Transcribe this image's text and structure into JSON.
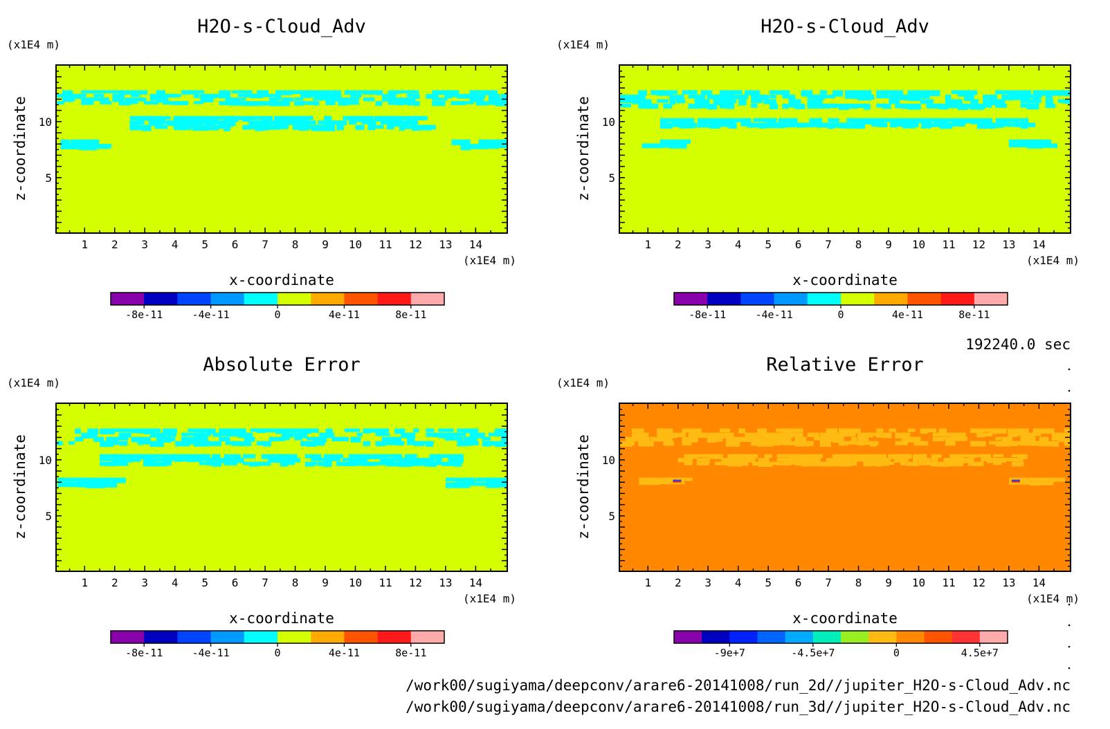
{
  "figure": {
    "time_label": "192240.0 sec",
    "files": [
      "/work00/sugiyama/deepconv/arare6-20141008/run_2d//jupiter_H2O-s-Cloud_Adv.nc",
      "/work00/sugiyama/deepconv/arare6-20141008/run_3d//jupiter_H2O-s-Cloud_Adv.nc"
    ]
  },
  "chart_data": [
    {
      "type": "heatmap",
      "title": "H2O-s-Cloud_Adv",
      "xlabel": "x-coordinate",
      "ylabel": "z-coordinate",
      "x_unit": "(x1E4 m)",
      "y_unit": "(x1E4 m)",
      "xlim": [
        0.05,
        15.05
      ],
      "ylim": [
        0.05,
        15.05
      ],
      "xticks": [
        "1",
        "2",
        "3",
        "4",
        "5",
        "6",
        "7",
        "8",
        "9",
        "10",
        "11",
        "12",
        "13",
        "14"
      ],
      "yticks": [
        "5",
        "10"
      ],
      "background_color": "#d4ff00",
      "feature_color": "#00ffff",
      "features": [
        {
          "x": [
            0.05,
            15.05
          ],
          "y": [
            11.5,
            12.8
          ],
          "desc": "broken cyan bands"
        },
        {
          "x": [
            2.5,
            12.5
          ],
          "y": [
            9.3,
            10.5
          ],
          "desc": "cyan layer"
        },
        {
          "x": [
            0.2,
            1.8
          ],
          "y": [
            7.6,
            8.4
          ],
          "desc": "cyan patch"
        },
        {
          "x": [
            13.2,
            15.0
          ],
          "y": [
            7.6,
            8.4
          ],
          "desc": "cyan patch"
        }
      ],
      "colorbar": {
        "colors": [
          "#8800aa",
          "#0000c0",
          "#0044ff",
          "#0099ff",
          "#00ffff",
          "#d4ff00",
          "#ffaa00",
          "#ff5500",
          "#ff1a1a",
          "#ffaaaa"
        ],
        "tick_labels": [
          "-8e-11",
          "-4e-11",
          "0",
          "4e-11",
          "8e-11"
        ]
      }
    },
    {
      "type": "heatmap",
      "title": "H2O-s-Cloud_Adv",
      "xlabel": "x-coordinate",
      "ylabel": "z-coordinate",
      "x_unit": "(x1E4 m)",
      "y_unit": "(x1E4 m)",
      "xlim": [
        0.05,
        15.05
      ],
      "ylim": [
        0.05,
        15.05
      ],
      "xticks": [
        "1",
        "2",
        "3",
        "4",
        "5",
        "6",
        "7",
        "8",
        "9",
        "10",
        "11",
        "12",
        "13",
        "14"
      ],
      "yticks": [
        "5",
        "10"
      ],
      "background_color": "#d4ff00",
      "feature_color": "#00ffff",
      "features": [
        {
          "x": [
            0.05,
            15.05
          ],
          "y": [
            11.2,
            12.8
          ],
          "desc": "broken cyan bands"
        },
        {
          "x": [
            1.2,
            13.8
          ],
          "y": [
            9.5,
            10.3
          ],
          "desc": "cyan layer"
        },
        {
          "x": [
            0.8,
            2.0
          ],
          "y": [
            7.7,
            8.4
          ],
          "desc": "cyan patch"
        },
        {
          "x": [
            13.0,
            14.2
          ],
          "y": [
            7.7,
            8.4
          ],
          "desc": "cyan patch"
        }
      ],
      "colorbar": {
        "colors": [
          "#8800aa",
          "#0000c0",
          "#0044ff",
          "#0099ff",
          "#00ffff",
          "#d4ff00",
          "#ffaa00",
          "#ff5500",
          "#ff1a1a",
          "#ffaaaa"
        ],
        "tick_labels": [
          "-8e-11",
          "-4e-11",
          "0",
          "4e-11",
          "8e-11"
        ]
      }
    },
    {
      "type": "heatmap",
      "title": "Absolute Error",
      "xlabel": "x-coordinate",
      "ylabel": "z-coordinate",
      "x_unit": "(x1E4 m)",
      "y_unit": "(x1E4 m)",
      "xlim": [
        0.05,
        15.05
      ],
      "ylim": [
        0.05,
        15.05
      ],
      "xticks": [
        "1",
        "2",
        "3",
        "4",
        "5",
        "6",
        "7",
        "8",
        "9",
        "10",
        "11",
        "12",
        "13",
        "14"
      ],
      "yticks": [
        "5",
        "10"
      ],
      "background_color": "#d4ff00",
      "feature_color": "#00ffff",
      "features": [
        {
          "x": [
            0.05,
            15.05
          ],
          "y": [
            11.3,
            12.8
          ],
          "desc": "broken cyan bands"
        },
        {
          "x": [
            1.5,
            13.5
          ],
          "y": [
            9.5,
            10.5
          ],
          "desc": "cyan layer"
        },
        {
          "x": [
            0.1,
            2.0
          ],
          "y": [
            7.6,
            8.4
          ],
          "desc": "cyan patch"
        },
        {
          "x": [
            13.0,
            15.0
          ],
          "y": [
            7.6,
            8.4
          ],
          "desc": "cyan patch"
        }
      ],
      "colorbar": {
        "colors": [
          "#8800aa",
          "#0000c0",
          "#0044ff",
          "#0099ff",
          "#00ffff",
          "#d4ff00",
          "#ffaa00",
          "#ff5500",
          "#ff1a1a",
          "#ffaaaa"
        ],
        "tick_labels": [
          "-8e-11",
          "-4e-11",
          "0",
          "4e-11",
          "8e-11"
        ]
      }
    },
    {
      "type": "heatmap",
      "title": "Relative Error",
      "xlabel": "x-coordinate",
      "ylabel": "z-coordinate",
      "x_unit": "(x1E4 m)",
      "y_unit": "(x1E4 m)",
      "xlim": [
        0.05,
        15.05
      ],
      "ylim": [
        0.05,
        15.05
      ],
      "xticks": [
        "1",
        "2",
        "3",
        "4",
        "5",
        "6",
        "7",
        "8",
        "9",
        "10",
        "11",
        "12",
        "13",
        "14"
      ],
      "yticks": [
        "5",
        "10"
      ],
      "background_color": "#ff8800",
      "feature_color": "#ffbb11",
      "features": [
        {
          "x": [
            0.05,
            15.05
          ],
          "y": [
            11.3,
            12.8
          ],
          "desc": "broken yellow-orange bands"
        },
        {
          "x": [
            2.0,
            13.5
          ],
          "y": [
            9.5,
            10.5
          ],
          "desc": "yellow-orange patches"
        },
        {
          "x": [
            0.7,
            2.2
          ],
          "y": [
            7.8,
            8.4
          ],
          "desc": "patch with small blue/red spot"
        },
        {
          "x": [
            13.0,
            14.4
          ],
          "y": [
            7.8,
            8.4
          ],
          "desc": "patch with small blue/red spot"
        }
      ],
      "colorbar": {
        "colors": [
          "#8800aa",
          "#0000c0",
          "#0022ff",
          "#0066ff",
          "#00aaff",
          "#00eebb",
          "#99ee22",
          "#ffbb11",
          "#ff8800",
          "#ff5500",
          "#ff3333",
          "#ffaaaa"
        ],
        "tick_labels": [
          "-9e+7",
          "-4.5e+7",
          "0",
          "4.5e+7"
        ]
      }
    }
  ]
}
